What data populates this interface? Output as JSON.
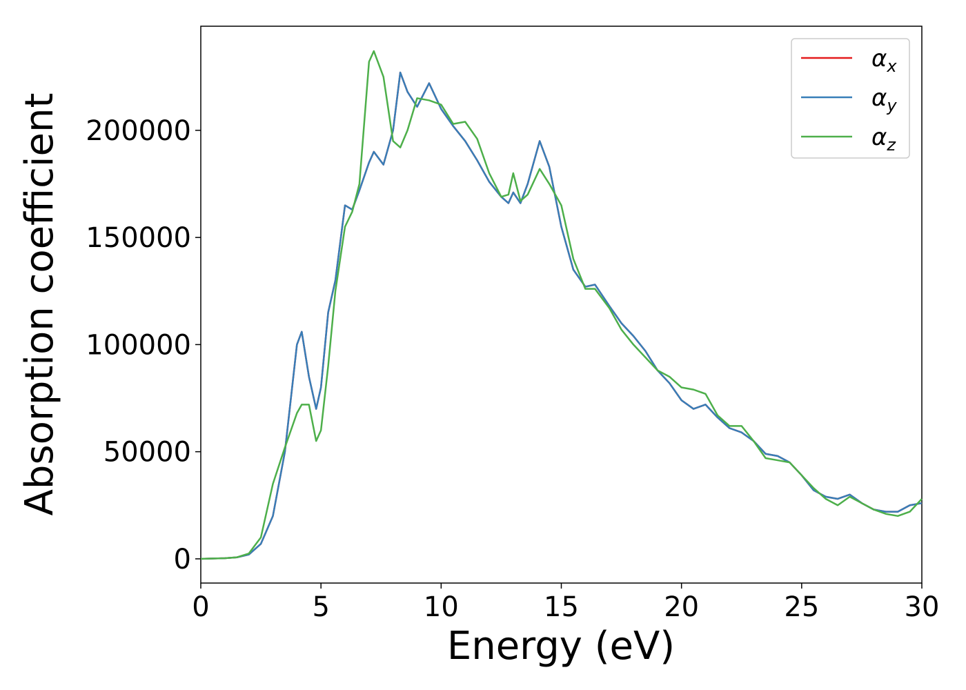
{
  "chart_data": {
    "type": "line",
    "x_label": "Energy (eV)",
    "y_label": "Absorption coefficient",
    "x": [
      0,
      1,
      1.5,
      2,
      2.5,
      3,
      3.5,
      4,
      4.2,
      4.5,
      4.8,
      5,
      5.3,
      5.6,
      6,
      6.3,
      6.6,
      7,
      7.2,
      7.6,
      8,
      8.3,
      8.6,
      9,
      9.5,
      10,
      10.5,
      11,
      11.5,
      12,
      12.5,
      12.8,
      13,
      13.3,
      13.6,
      14.1,
      14.5,
      15,
      15.5,
      16,
      16.4,
      17,
      17.5,
      18,
      18.5,
      19,
      19.5,
      20,
      20.5,
      21,
      21.5,
      22,
      22.5,
      23,
      23.5,
      24,
      24.5,
      25,
      25.5,
      26,
      26.5,
      27,
      27.5,
      28,
      28.5,
      29,
      29.5,
      30
    ],
    "series": [
      {
        "name": "αx",
        "color": "#e41a1c",
        "values": [
          0,
          300,
          700,
          2000,
          7000,
          20000,
          50000,
          100000,
          106000,
          85000,
          70000,
          80000,
          115000,
          130000,
          165000,
          163000,
          172000,
          185000,
          190000,
          184000,
          200000,
          227000,
          218000,
          211000,
          222000,
          210000,
          202000,
          195000,
          186000,
          176000,
          169000,
          166000,
          171000,
          166000,
          175000,
          195000,
          183000,
          155000,
          135000,
          127000,
          128000,
          118000,
          110000,
          104000,
          97000,
          88000,
          82000,
          74000,
          70000,
          72000,
          66000,
          61000,
          59000,
          55000,
          49000,
          48000,
          45000,
          39000,
          32000,
          29000,
          28000,
          30000,
          26000,
          23000,
          22000,
          22000,
          25000,
          26000
        ]
      },
      {
        "name": "αy",
        "color": "#377eb8",
        "values": [
          0,
          300,
          700,
          2000,
          7000,
          20000,
          50000,
          100000,
          106000,
          85000,
          70000,
          80000,
          115000,
          130000,
          165000,
          163000,
          172000,
          185000,
          190000,
          184000,
          200000,
          227000,
          218000,
          211000,
          222000,
          210000,
          202000,
          195000,
          186000,
          176000,
          169000,
          166000,
          171000,
          166000,
          175000,
          195000,
          183000,
          155000,
          135000,
          127000,
          128000,
          118000,
          110000,
          104000,
          97000,
          88000,
          82000,
          74000,
          70000,
          72000,
          66000,
          61000,
          59000,
          55000,
          49000,
          48000,
          45000,
          39000,
          32000,
          29000,
          28000,
          30000,
          26000,
          23000,
          22000,
          22000,
          25000,
          26000
        ]
      },
      {
        "name": "αz",
        "color": "#4daf4a",
        "values": [
          0,
          300,
          700,
          2500,
          10000,
          35000,
          52000,
          68000,
          72000,
          72000,
          55000,
          60000,
          90000,
          125000,
          155000,
          162000,
          175000,
          232000,
          237000,
          225000,
          195000,
          192000,
          200000,
          215000,
          214000,
          212000,
          203000,
          204000,
          196000,
          180000,
          169000,
          170000,
          180000,
          167000,
          170000,
          182000,
          175000,
          165000,
          140000,
          126000,
          126000,
          117000,
          107000,
          100000,
          94000,
          88000,
          85000,
          80000,
          79000,
          77000,
          67000,
          62000,
          62000,
          55000,
          47000,
          46000,
          45000,
          39000,
          33000,
          28000,
          25000,
          29000,
          26000,
          23000,
          21000,
          20000,
          22000,
          28000
        ]
      }
    ],
    "xlim": [
      0,
      30
    ],
    "xticks": [
      0,
      5,
      10,
      15,
      20,
      25,
      30
    ],
    "ylim": [
      -11300,
      248600
    ],
    "yticks": [
      0,
      50000,
      100000,
      150000,
      200000
    ],
    "legend": "upper right"
  }
}
